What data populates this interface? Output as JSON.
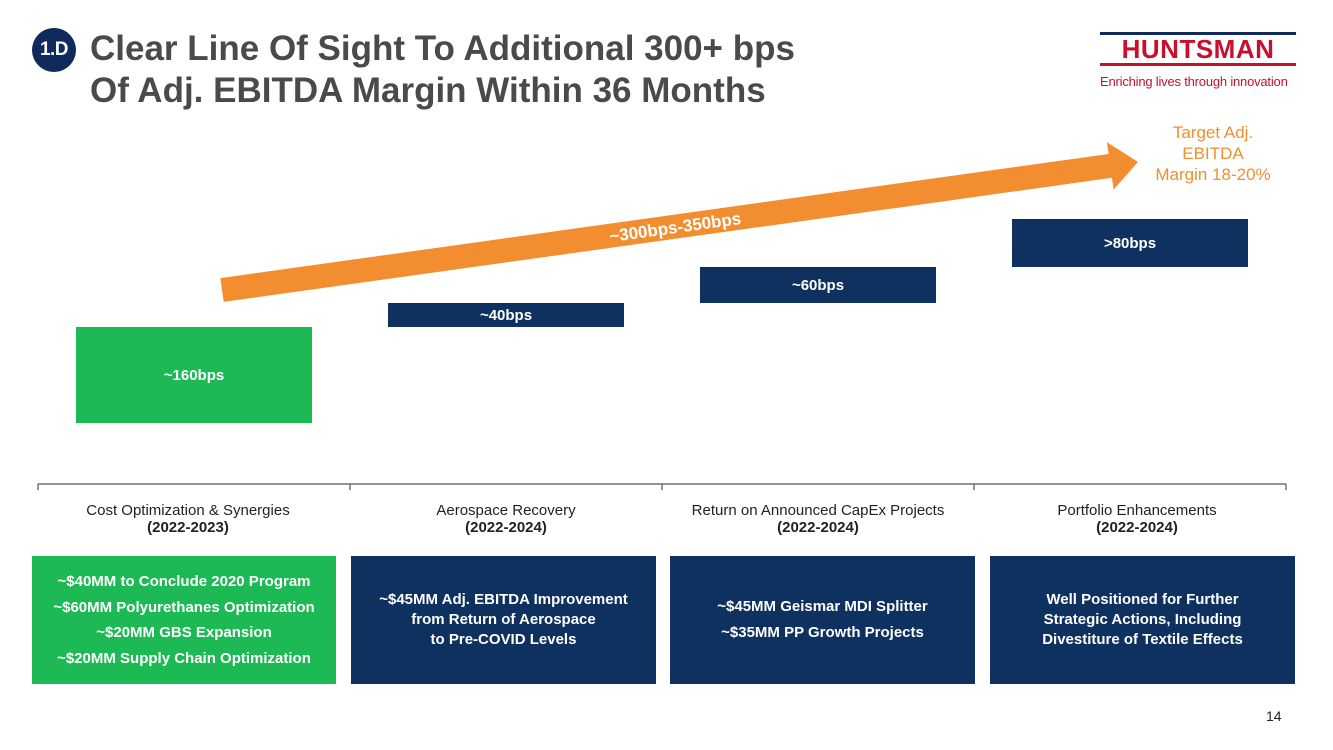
{
  "header": {
    "badge": "1.D",
    "title_line1": "Clear Line Of Sight To Additional 300+ bps",
    "title_line2": "Of Adj. EBITDA Margin Within 36 Months"
  },
  "logo": {
    "name": "HUNTSMAN",
    "tagline": "Enriching lives through innovation"
  },
  "target": {
    "line1": "Target Adj.",
    "line2": "EBITDA",
    "line3": "Margin 18-20%"
  },
  "arrow_label": "~300bps-350bps",
  "chart_data": {
    "type": "bar",
    "subtype": "floating-waterfall",
    "categories": [
      "Cost Optimization & Synergies",
      "Aerospace Recovery",
      "Return on Announced CapEx Projects",
      "Portfolio Enhancements"
    ],
    "values_bps": [
      160,
      40,
      60,
      80
    ],
    "labels": [
      "~160bps",
      "~40bps",
      "~60bps",
      ">80bps"
    ],
    "total_label": "~300bps-350bps",
    "target_label": "Target Adj. EBITDA Margin 18-20%",
    "colors": [
      "#1db954",
      "#0f3160",
      "#0f3160",
      "#0f3160"
    ],
    "arrow_color": "#f28e30"
  },
  "columns": [
    {
      "name": "Cost Optimization & Synergies",
      "period": "(2022-2023)",
      "details": [
        "~$40MM to Conclude 2020 Program",
        "~$60MM Polyurethanes Optimization",
        "~$20MM GBS Expansion",
        "~$20MM Supply Chain Optimization"
      ]
    },
    {
      "name": "Aerospace Recovery",
      "period": "(2022-2024)",
      "details": [
        "~$45MM Adj. EBITDA Improvement",
        "from Return of Aerospace",
        "to Pre-COVID Levels"
      ]
    },
    {
      "name": "Return on Announced CapEx Projects",
      "period": "(2022-2024)",
      "details": [
        "~$45MM Geismar MDI Splitter",
        "~$35MM PP Growth Projects"
      ]
    },
    {
      "name": "Portfolio Enhancements",
      "period": "(2022-2024)",
      "details": [
        "Well Positioned for Further",
        "Strategic Actions, Including",
        "Divestiture of Textile Effects"
      ]
    }
  ],
  "colors": {
    "navy": "#0f3160",
    "green": "#1db954",
    "orange": "#f28e30",
    "title_gray": "#4a4a4a",
    "brand_red": "#c8102e"
  },
  "page_number": "14"
}
